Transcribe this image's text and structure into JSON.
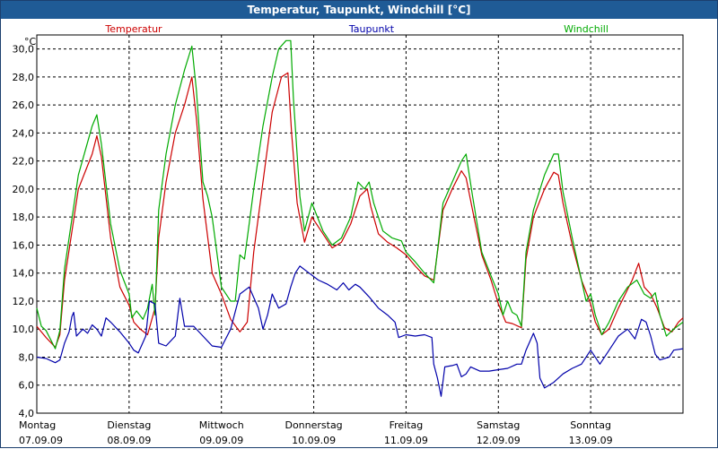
{
  "window": {
    "title": "Temperatur, Taupunkt, Windchill [°C]"
  },
  "colors": {
    "temperatur": "#cc0000",
    "taupunkt": "#0000aa",
    "windchill": "#00aa00",
    "title_bar": "#1f5b96",
    "grid": "#000000"
  },
  "chart_data": {
    "type": "line",
    "title": "Temperatur, Taupunkt, Windchill [°C]",
    "ylabel": "°C",
    "ylim": [
      4,
      31
    ],
    "xlim": [
      0,
      7
    ],
    "grid": true,
    "yticks": [
      4,
      6,
      8,
      10,
      12,
      14,
      16,
      18,
      20,
      22,
      24,
      26,
      28,
      30
    ],
    "ytick_labels": [
      "4,0",
      "6,0",
      "8,0",
      "10,0",
      "12,0",
      "14,0",
      "16,0",
      "18,0",
      "20,0",
      "22,0",
      "24,0",
      "26,0",
      "28,0",
      "30,0"
    ],
    "x_day_labels": [
      {
        "day": "Montag",
        "date": "07.09.09"
      },
      {
        "day": "Dienstag",
        "date": "08.09.09"
      },
      {
        "day": "Mittwoch",
        "date": "09.09.09"
      },
      {
        "day": "Donnerstag",
        "date": "10.09.09"
      },
      {
        "day": "Freitag",
        "date": "11.09.09"
      },
      {
        "day": "Samstag",
        "date": "12.09.09"
      },
      {
        "day": "Sonntag",
        "date": "13.09.09"
      }
    ],
    "legend": [
      "Temperatur",
      "Taupunkt",
      "Windchill"
    ],
    "series": [
      {
        "name": "Temperatur",
        "color": "#cc0000",
        "points": [
          [
            0.0,
            10.2
          ],
          [
            0.1,
            9.4
          ],
          [
            0.2,
            8.7
          ],
          [
            0.25,
            9.6
          ],
          [
            0.3,
            13.5
          ],
          [
            0.45,
            20.0
          ],
          [
            0.6,
            22.5
          ],
          [
            0.65,
            23.8
          ],
          [
            0.7,
            22.3
          ],
          [
            0.8,
            16.5
          ],
          [
            0.9,
            13.0
          ],
          [
            1.0,
            11.7
          ],
          [
            1.05,
            10.5
          ],
          [
            1.12,
            10.0
          ],
          [
            1.2,
            9.6
          ],
          [
            1.28,
            11.5
          ],
          [
            1.32,
            16.5
          ],
          [
            1.4,
            20.5
          ],
          [
            1.5,
            24.0
          ],
          [
            1.6,
            26.0
          ],
          [
            1.68,
            28.0
          ],
          [
            1.73,
            25.0
          ],
          [
            1.8,
            19.3
          ],
          [
            1.9,
            14.0
          ],
          [
            2.0,
            12.5
          ],
          [
            2.1,
            10.7
          ],
          [
            2.2,
            9.8
          ],
          [
            2.28,
            10.5
          ],
          [
            2.35,
            15.5
          ],
          [
            2.45,
            20.5
          ],
          [
            2.55,
            25.5
          ],
          [
            2.65,
            28.0
          ],
          [
            2.72,
            28.3
          ],
          [
            2.76,
            24.0
          ],
          [
            2.82,
            19.0
          ],
          [
            2.9,
            16.2
          ],
          [
            2.98,
            18.0
          ],
          [
            3.1,
            16.8
          ],
          [
            3.2,
            15.8
          ],
          [
            3.3,
            16.2
          ],
          [
            3.4,
            17.5
          ],
          [
            3.5,
            19.5
          ],
          [
            3.58,
            20.0
          ],
          [
            3.62,
            18.7
          ],
          [
            3.7,
            16.8
          ],
          [
            3.8,
            16.2
          ],
          [
            3.9,
            15.8
          ],
          [
            4.0,
            15.3
          ],
          [
            4.1,
            14.5
          ],
          [
            4.2,
            13.8
          ],
          [
            4.3,
            13.5
          ],
          [
            4.4,
            18.5
          ],
          [
            4.5,
            20.0
          ],
          [
            4.6,
            21.3
          ],
          [
            4.65,
            20.8
          ],
          [
            4.72,
            18.5
          ],
          [
            4.82,
            15.3
          ],
          [
            4.92,
            13.5
          ],
          [
            5.0,
            11.8
          ],
          [
            5.08,
            10.5
          ],
          [
            5.15,
            10.4
          ],
          [
            5.25,
            10.1
          ],
          [
            5.3,
            15.0
          ],
          [
            5.38,
            18.0
          ],
          [
            5.5,
            20.0
          ],
          [
            5.6,
            21.2
          ],
          [
            5.65,
            21.0
          ],
          [
            5.7,
            19.0
          ],
          [
            5.8,
            16.0
          ],
          [
            5.9,
            13.5
          ],
          [
            6.0,
            11.8
          ],
          [
            6.05,
            10.5
          ],
          [
            6.12,
            9.6
          ],
          [
            6.2,
            10.0
          ],
          [
            6.3,
            11.5
          ],
          [
            6.45,
            13.5
          ],
          [
            6.52,
            14.7
          ],
          [
            6.58,
            13.0
          ],
          [
            6.65,
            12.5
          ],
          [
            6.72,
            11.5
          ],
          [
            6.8,
            10.1
          ],
          [
            6.88,
            9.8
          ],
          [
            6.95,
            10.5
          ],
          [
            7.0,
            10.8
          ]
        ]
      },
      {
        "name": "Windchill",
        "color": "#00aa00",
        "points": [
          [
            0.0,
            11.5
          ],
          [
            0.05,
            10.2
          ],
          [
            0.1,
            9.9
          ],
          [
            0.2,
            8.6
          ],
          [
            0.25,
            9.9
          ],
          [
            0.3,
            14.3
          ],
          [
            0.45,
            21.0
          ],
          [
            0.6,
            24.5
          ],
          [
            0.65,
            25.3
          ],
          [
            0.7,
            23.2
          ],
          [
            0.8,
            17.5
          ],
          [
            0.9,
            14.2
          ],
          [
            1.0,
            12.5
          ],
          [
            1.03,
            10.8
          ],
          [
            1.08,
            11.3
          ],
          [
            1.15,
            10.7
          ],
          [
            1.2,
            11.5
          ],
          [
            1.25,
            13.2
          ],
          [
            1.28,
            11.0
          ],
          [
            1.32,
            18.5
          ],
          [
            1.4,
            22.5
          ],
          [
            1.5,
            26.0
          ],
          [
            1.6,
            28.5
          ],
          [
            1.68,
            30.2
          ],
          [
            1.73,
            27.0
          ],
          [
            1.8,
            20.5
          ],
          [
            1.85,
            19.5
          ],
          [
            1.9,
            18.0
          ],
          [
            2.0,
            13.0
          ],
          [
            2.1,
            12.0
          ],
          [
            2.15,
            12.0
          ],
          [
            2.2,
            15.3
          ],
          [
            2.25,
            15.0
          ],
          [
            2.3,
            17.5
          ],
          [
            2.35,
            20.0
          ],
          [
            2.45,
            24.5
          ],
          [
            2.55,
            28.0
          ],
          [
            2.62,
            30.0
          ],
          [
            2.7,
            30.6
          ],
          [
            2.75,
            30.6
          ],
          [
            2.78,
            26.5
          ],
          [
            2.85,
            19.5
          ],
          [
            2.9,
            17.0
          ],
          [
            2.98,
            19.0
          ],
          [
            3.1,
            17.0
          ],
          [
            3.2,
            16.0
          ],
          [
            3.3,
            16.5
          ],
          [
            3.4,
            18.0
          ],
          [
            3.48,
            20.5
          ],
          [
            3.55,
            20.0
          ],
          [
            3.6,
            20.5
          ],
          [
            3.65,
            19.0
          ],
          [
            3.75,
            17.0
          ],
          [
            3.85,
            16.5
          ],
          [
            3.95,
            16.3
          ],
          [
            4.0,
            15.5
          ],
          [
            4.1,
            14.8
          ],
          [
            4.2,
            14.0
          ],
          [
            4.3,
            13.3
          ],
          [
            4.4,
            19.0
          ],
          [
            4.5,
            20.5
          ],
          [
            4.6,
            22.0
          ],
          [
            4.65,
            22.5
          ],
          [
            4.72,
            19.5
          ],
          [
            4.82,
            15.5
          ],
          [
            4.92,
            13.8
          ],
          [
            5.0,
            12.5
          ],
          [
            5.05,
            11.0
          ],
          [
            5.1,
            12.0
          ],
          [
            5.15,
            11.2
          ],
          [
            5.2,
            11.0
          ],
          [
            5.25,
            10.2
          ],
          [
            5.3,
            15.5
          ],
          [
            5.38,
            18.5
          ],
          [
            5.5,
            21.0
          ],
          [
            5.6,
            22.5
          ],
          [
            5.65,
            22.5
          ],
          [
            5.7,
            19.8
          ],
          [
            5.8,
            16.5
          ],
          [
            5.9,
            13.5
          ],
          [
            5.95,
            12.0
          ],
          [
            6.0,
            12.5
          ],
          [
            6.05,
            11.0
          ],
          [
            6.12,
            9.6
          ],
          [
            6.2,
            10.5
          ],
          [
            6.3,
            12.0
          ],
          [
            6.4,
            13.0
          ],
          [
            6.5,
            13.5
          ],
          [
            6.58,
            12.5
          ],
          [
            6.65,
            12.2
          ],
          [
            6.7,
            12.6
          ],
          [
            6.75,
            11.0
          ],
          [
            6.82,
            9.5
          ],
          [
            6.9,
            10.0
          ],
          [
            7.0,
            10.5
          ]
        ]
      },
      {
        "name": "Taupunkt",
        "color": "#0000aa",
        "points": [
          [
            0.0,
            8.0
          ],
          [
            0.1,
            7.9
          ],
          [
            0.2,
            7.6
          ],
          [
            0.25,
            7.8
          ],
          [
            0.3,
            9.0
          ],
          [
            0.35,
            9.8
          ],
          [
            0.38,
            10.9
          ],
          [
            0.4,
            11.2
          ],
          [
            0.43,
            9.5
          ],
          [
            0.5,
            10.0
          ],
          [
            0.55,
            9.7
          ],
          [
            0.6,
            10.3
          ],
          [
            0.65,
            10.0
          ],
          [
            0.7,
            9.5
          ],
          [
            0.75,
            10.8
          ],
          [
            0.8,
            10.5
          ],
          [
            0.9,
            9.8
          ],
          [
            1.0,
            9.0
          ],
          [
            1.05,
            8.5
          ],
          [
            1.1,
            8.3
          ],
          [
            1.18,
            9.5
          ],
          [
            1.22,
            12.0
          ],
          [
            1.28,
            11.8
          ],
          [
            1.32,
            9.0
          ],
          [
            1.4,
            8.8
          ],
          [
            1.5,
            9.5
          ],
          [
            1.55,
            12.2
          ],
          [
            1.6,
            10.2
          ],
          [
            1.7,
            10.2
          ],
          [
            1.8,
            9.5
          ],
          [
            1.9,
            8.8
          ],
          [
            2.0,
            8.7
          ],
          [
            2.1,
            10.0
          ],
          [
            2.2,
            12.5
          ],
          [
            2.3,
            13.0
          ],
          [
            2.4,
            11.5
          ],
          [
            2.45,
            10.0
          ],
          [
            2.5,
            11.0
          ],
          [
            2.55,
            12.5
          ],
          [
            2.62,
            11.5
          ],
          [
            2.7,
            11.8
          ],
          [
            2.75,
            13.0
          ],
          [
            2.8,
            14.0
          ],
          [
            2.85,
            14.5
          ],
          [
            2.95,
            14.0
          ],
          [
            3.05,
            13.5
          ],
          [
            3.15,
            13.2
          ],
          [
            3.25,
            12.8
          ],
          [
            3.32,
            13.3
          ],
          [
            3.38,
            12.8
          ],
          [
            3.45,
            13.2
          ],
          [
            3.5,
            13.0
          ],
          [
            3.6,
            12.3
          ],
          [
            3.7,
            11.5
          ],
          [
            3.8,
            11.0
          ],
          [
            3.88,
            10.5
          ],
          [
            3.92,
            9.4
          ],
          [
            4.0,
            9.6
          ],
          [
            4.1,
            9.5
          ],
          [
            4.2,
            9.6
          ],
          [
            4.28,
            9.4
          ],
          [
            4.3,
            7.5
          ],
          [
            4.34,
            6.5
          ],
          [
            4.38,
            5.2
          ],
          [
            4.42,
            7.3
          ],
          [
            4.5,
            7.4
          ],
          [
            4.55,
            7.5
          ],
          [
            4.6,
            6.6
          ],
          [
            4.65,
            6.8
          ],
          [
            4.7,
            7.3
          ],
          [
            4.8,
            7.0
          ],
          [
            4.9,
            7.0
          ],
          [
            5.0,
            7.1
          ],
          [
            5.1,
            7.2
          ],
          [
            5.2,
            7.5
          ],
          [
            5.25,
            7.5
          ],
          [
            5.3,
            8.5
          ],
          [
            5.38,
            9.7
          ],
          [
            5.42,
            9.0
          ],
          [
            5.45,
            6.5
          ],
          [
            5.5,
            5.8
          ],
          [
            5.6,
            6.2
          ],
          [
            5.7,
            6.8
          ],
          [
            5.8,
            7.2
          ],
          [
            5.9,
            7.5
          ],
          [
            6.0,
            8.5
          ],
          [
            6.1,
            7.5
          ],
          [
            6.2,
            8.5
          ],
          [
            6.3,
            9.5
          ],
          [
            6.4,
            10.0
          ],
          [
            6.48,
            9.3
          ],
          [
            6.55,
            10.7
          ],
          [
            6.6,
            10.5
          ],
          [
            6.65,
            9.5
          ],
          [
            6.7,
            8.2
          ],
          [
            6.75,
            7.8
          ],
          [
            6.85,
            8.0
          ],
          [
            6.9,
            8.5
          ],
          [
            7.0,
            8.6
          ]
        ]
      }
    ]
  }
}
